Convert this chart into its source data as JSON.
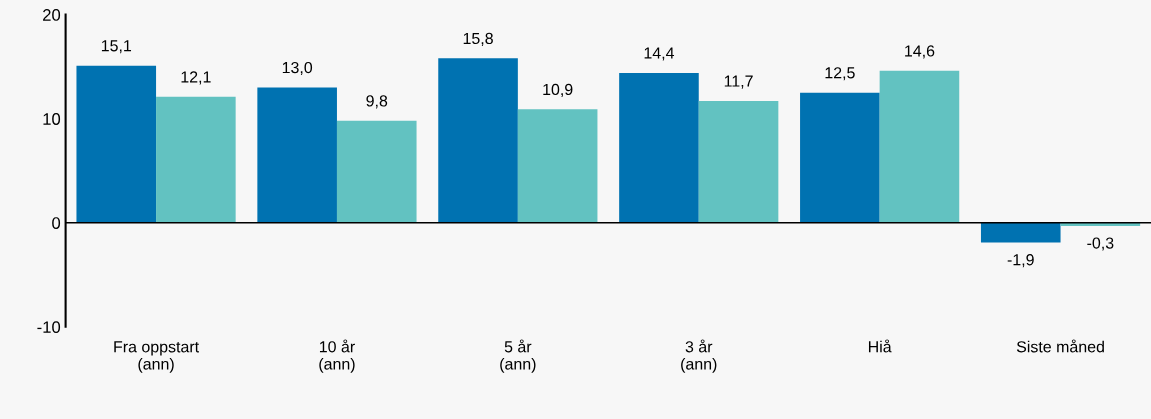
{
  "chart_data": {
    "type": "bar",
    "categories": [
      "Fra oppstart\n(ann)",
      "10 år\n(ann)",
      "5 år\n(ann)",
      "3 år\n(ann)",
      "Hiå",
      "Siste måned"
    ],
    "series": [
      {
        "color": "#0072b1",
        "values": [
          15.1,
          13.0,
          15.8,
          14.4,
          12.5,
          -1.9
        ],
        "value_labels": [
          "15,1",
          "13,0",
          "15,8",
          "14,4",
          "12,5",
          "-1,9"
        ]
      },
      {
        "color": "#62c2c1",
        "values": [
          12.1,
          9.8,
          10.9,
          11.7,
          14.6,
          -0.3
        ],
        "value_labels": [
          "12,1",
          "9,8",
          "10,9",
          "11,7",
          "14,6",
          "-0,3"
        ]
      }
    ],
    "ylim": [
      -10,
      20
    ],
    "yticks": [
      -10,
      0,
      10,
      20
    ],
    "grid": false,
    "legend": false,
    "ref_lines": [
      {
        "axis": "y",
        "value": 0,
        "color": "#000000"
      }
    ]
  }
}
